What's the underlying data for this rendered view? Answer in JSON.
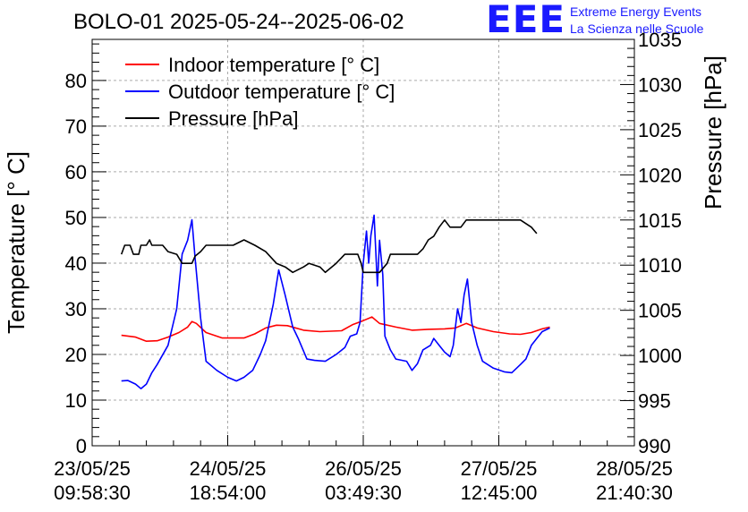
{
  "header": {
    "title": "BOLO-01 2025-05-24--2025-06-02",
    "logo_mark": "EEE",
    "logo_line1": "Extreme Energy Events",
    "logo_line2": "La Scienza nelle Scuole"
  },
  "chart_data": {
    "type": "line",
    "title": "BOLO-01 2025-05-24--2025-06-02",
    "ylabel": "Temperature [° C]",
    "y2label": "Pressure [hPa]",
    "ylim": [
      0,
      89
    ],
    "y2lim": [
      990,
      1035
    ],
    "xlim": [
      0,
      5
    ],
    "grid": true,
    "legend_position": "top-left",
    "yticks": [
      "0",
      "10",
      "20",
      "30",
      "40",
      "50",
      "60",
      "70",
      "80"
    ],
    "y2ticks": [
      "990",
      "995",
      "1000",
      "1005",
      "1010",
      "1015",
      "1020",
      "1025",
      "1030",
      "1035"
    ],
    "xticks": [
      {
        "date": "23/05/25",
        "time": "09:58:30"
      },
      {
        "date": "24/05/25",
        "time": "18:54:00"
      },
      {
        "date": "26/05/25",
        "time": "03:49:30"
      },
      {
        "date": "27/05/25",
        "time": "12:45:00"
      },
      {
        "date": "28/05/25",
        "time": "21:40:30"
      }
    ],
    "series": [
      {
        "name": "Indoor temperature [° C]",
        "axis": "left",
        "color": "#ff0000",
        "points": [
          [
            0.27,
            24.2
          ],
          [
            0.4,
            23.8
          ],
          [
            0.5,
            22.9
          ],
          [
            0.6,
            23.0
          ],
          [
            0.7,
            23.8
          ],
          [
            0.8,
            24.8
          ],
          [
            0.88,
            26.0
          ],
          [
            0.92,
            27.2
          ],
          [
            0.96,
            26.8
          ],
          [
            1.05,
            24.8
          ],
          [
            1.2,
            23.6
          ],
          [
            1.4,
            23.6
          ],
          [
            1.5,
            24.5
          ],
          [
            1.6,
            25.8
          ],
          [
            1.7,
            26.4
          ],
          [
            1.8,
            26.3
          ],
          [
            1.95,
            25.3
          ],
          [
            2.1,
            25.0
          ],
          [
            2.3,
            25.2
          ],
          [
            2.4,
            26.5
          ],
          [
            2.5,
            27.4
          ],
          [
            2.58,
            28.2
          ],
          [
            2.65,
            26.8
          ],
          [
            2.8,
            26.0
          ],
          [
            2.95,
            25.3
          ],
          [
            3.1,
            25.5
          ],
          [
            3.25,
            25.6
          ],
          [
            3.35,
            25.8
          ],
          [
            3.45,
            26.8
          ],
          [
            3.55,
            25.8
          ],
          [
            3.7,
            25.0
          ],
          [
            3.85,
            24.5
          ],
          [
            3.95,
            24.4
          ],
          [
            4.05,
            24.8
          ],
          [
            4.15,
            25.6
          ],
          [
            4.22,
            26.0
          ]
        ]
      },
      {
        "name": "Outdoor temperature [° C]",
        "axis": "left",
        "color": "#0000ff",
        "points": [
          [
            0.27,
            14.2
          ],
          [
            0.33,
            14.3
          ],
          [
            0.4,
            13.5
          ],
          [
            0.45,
            12.5
          ],
          [
            0.5,
            13.5
          ],
          [
            0.55,
            16.0
          ],
          [
            0.6,
            17.8
          ],
          [
            0.7,
            22.0
          ],
          [
            0.78,
            30.0
          ],
          [
            0.83,
            42.0
          ],
          [
            0.88,
            45.0
          ],
          [
            0.92,
            49.5
          ],
          [
            0.95,
            41.0
          ],
          [
            1.0,
            28.0
          ],
          [
            1.05,
            18.5
          ],
          [
            1.15,
            16.5
          ],
          [
            1.25,
            15.0
          ],
          [
            1.33,
            14.2
          ],
          [
            1.4,
            15.0
          ],
          [
            1.48,
            16.5
          ],
          [
            1.55,
            20.0
          ],
          [
            1.6,
            23.0
          ],
          [
            1.67,
            31.0
          ],
          [
            1.72,
            38.5
          ],
          [
            1.78,
            33.0
          ],
          [
            1.85,
            26.0
          ],
          [
            1.9,
            23.5
          ],
          [
            1.98,
            19.0
          ],
          [
            2.05,
            18.7
          ],
          [
            2.15,
            18.5
          ],
          [
            2.25,
            20.0
          ],
          [
            2.33,
            21.5
          ],
          [
            2.38,
            24.0
          ],
          [
            2.44,
            24.5
          ],
          [
            2.47,
            27.0
          ],
          [
            2.5,
            40.0
          ],
          [
            2.53,
            47.0
          ],
          [
            2.55,
            40.0
          ],
          [
            2.57,
            46.0
          ],
          [
            2.6,
            50.5
          ],
          [
            2.63,
            35.0
          ],
          [
            2.65,
            45.0
          ],
          [
            2.68,
            37.5
          ],
          [
            2.7,
            24.0
          ],
          [
            2.75,
            21.0
          ],
          [
            2.8,
            19.0
          ],
          [
            2.9,
            18.5
          ],
          [
            2.95,
            16.5
          ],
          [
            3.0,
            18.0
          ],
          [
            3.05,
            21.0
          ],
          [
            3.12,
            22.0
          ],
          [
            3.15,
            23.5
          ],
          [
            3.2,
            22.0
          ],
          [
            3.25,
            20.5
          ],
          [
            3.3,
            19.5
          ],
          [
            3.33,
            22.0
          ],
          [
            3.37,
            30.0
          ],
          [
            3.4,
            27.0
          ],
          [
            3.43,
            33.0
          ],
          [
            3.46,
            36.5
          ],
          [
            3.5,
            27.0
          ],
          [
            3.55,
            22.0
          ],
          [
            3.6,
            18.5
          ],
          [
            3.7,
            17.0
          ],
          [
            3.8,
            16.2
          ],
          [
            3.87,
            16.0
          ],
          [
            3.95,
            17.8
          ],
          [
            4.0,
            19.0
          ],
          [
            4.05,
            22.0
          ],
          [
            4.1,
            23.5
          ],
          [
            4.15,
            25.0
          ],
          [
            4.22,
            25.8
          ]
        ]
      },
      {
        "name": "Pressure [hPa]",
        "axis": "right",
        "color": "#000000",
        "points": [
          [
            0.27,
            1011.2
          ],
          [
            0.3,
            1012.2
          ],
          [
            0.35,
            1012.2
          ],
          [
            0.38,
            1011.2
          ],
          [
            0.43,
            1011.2
          ],
          [
            0.45,
            1012.2
          ],
          [
            0.5,
            1012.2
          ],
          [
            0.53,
            1012.8
          ],
          [
            0.55,
            1012.2
          ],
          [
            0.65,
            1012.2
          ],
          [
            0.7,
            1011.5
          ],
          [
            0.78,
            1011.2
          ],
          [
            0.83,
            1010.2
          ],
          [
            0.92,
            1010.2
          ],
          [
            0.95,
            1011.0
          ],
          [
            1.0,
            1011.5
          ],
          [
            1.05,
            1012.2
          ],
          [
            1.15,
            1012.2
          ],
          [
            1.3,
            1012.2
          ],
          [
            1.4,
            1012.8
          ],
          [
            1.5,
            1012.2
          ],
          [
            1.6,
            1011.5
          ],
          [
            1.7,
            1010.2
          ],
          [
            1.78,
            1009.8
          ],
          [
            1.85,
            1009.2
          ],
          [
            1.95,
            1009.8
          ],
          [
            2.0,
            1010.2
          ],
          [
            2.1,
            1009.8
          ],
          [
            2.15,
            1009.2
          ],
          [
            2.25,
            1010.2
          ],
          [
            2.33,
            1011.2
          ],
          [
            2.4,
            1011.2
          ],
          [
            2.45,
            1011.2
          ],
          [
            2.48,
            1010.2
          ],
          [
            2.5,
            1009.2
          ],
          [
            2.65,
            1009.2
          ],
          [
            2.72,
            1010.2
          ],
          [
            2.75,
            1011.2
          ],
          [
            2.85,
            1011.2
          ],
          [
            3.0,
            1011.2
          ],
          [
            3.05,
            1011.8
          ],
          [
            3.1,
            1012.8
          ],
          [
            3.15,
            1013.2
          ],
          [
            3.2,
            1014.2
          ],
          [
            3.25,
            1015.0
          ],
          [
            3.3,
            1014.2
          ],
          [
            3.4,
            1014.2
          ],
          [
            3.45,
            1015.0
          ],
          [
            3.6,
            1015.0
          ],
          [
            3.7,
            1015.0
          ],
          [
            3.85,
            1015.0
          ],
          [
            3.95,
            1015.0
          ],
          [
            4.05,
            1014.2
          ],
          [
            4.1,
            1013.5
          ]
        ]
      }
    ]
  }
}
